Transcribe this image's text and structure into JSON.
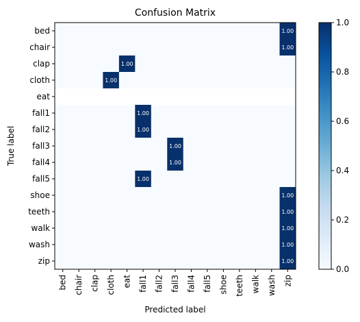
{
  "chart_data": {
    "type": "heatmap",
    "title": "Confusion Matrix",
    "xlabel": "Predicted label",
    "ylabel": "True label",
    "labels": [
      "bed",
      "chair",
      "clap",
      "cloth",
      "eat",
      "fall1",
      "fall2",
      "fall3",
      "fall4",
      "fall5",
      "shoe",
      "teeth",
      "walk",
      "wash",
      "zip"
    ],
    "matrix": [
      [
        0,
        0,
        0,
        0,
        0,
        0,
        0,
        0,
        0,
        0,
        0,
        0,
        0,
        0,
        1
      ],
      [
        0,
        0,
        0,
        0,
        0,
        0,
        0,
        0,
        0,
        0,
        0,
        0,
        0,
        0,
        1
      ],
      [
        0,
        0,
        0,
        0,
        1,
        0,
        0,
        0,
        0,
        0,
        0,
        0,
        0,
        0,
        0
      ],
      [
        0,
        0,
        0,
        1,
        0,
        0,
        0,
        0,
        0,
        0,
        0,
        0,
        0,
        0,
        0
      ],
      [
        null,
        null,
        null,
        null,
        null,
        null,
        null,
        null,
        null,
        null,
        null,
        null,
        null,
        null,
        null
      ],
      [
        0,
        0,
        0,
        0,
        0,
        1,
        0,
        0,
        0,
        0,
        0,
        0,
        0,
        0,
        0
      ],
      [
        0,
        0,
        0,
        0,
        0,
        1,
        0,
        0,
        0,
        0,
        0,
        0,
        0,
        0,
        0
      ],
      [
        0,
        0,
        0,
        0,
        0,
        0,
        0,
        1,
        0,
        0,
        0,
        0,
        0,
        0,
        0
      ],
      [
        0,
        0,
        0,
        0,
        0,
        0,
        0,
        1,
        0,
        0,
        0,
        0,
        0,
        0,
        0
      ],
      [
        0,
        0,
        0,
        0,
        0,
        1,
        0,
        0,
        0,
        0,
        0,
        0,
        0,
        0,
        0
      ],
      [
        0,
        0,
        0,
        0,
        0,
        0,
        0,
        0,
        0,
        0,
        0,
        0,
        0,
        0,
        1
      ],
      [
        0,
        0,
        0,
        0,
        0,
        0,
        0,
        0,
        0,
        0,
        0,
        0,
        0,
        0,
        1
      ],
      [
        0,
        0,
        0,
        0,
        0,
        0,
        0,
        0,
        0,
        0,
        0,
        0,
        0,
        0,
        1
      ],
      [
        0,
        0,
        0,
        0,
        0,
        0,
        0,
        0,
        0,
        0,
        0,
        0,
        0,
        0,
        1
      ],
      [
        0,
        0,
        0,
        0,
        0,
        0,
        0,
        0,
        0,
        0,
        0,
        0,
        0,
        0,
        1
      ]
    ],
    "cell_label_format": "1.00",
    "colormap": "Blues",
    "colorbar": {
      "min": 0.0,
      "max": 1.0,
      "ticks": [
        "0.0",
        "0.2",
        "0.4",
        "0.6",
        "0.8",
        "1.0"
      ]
    },
    "colors": {
      "low": "#f7fbff",
      "high": "#08306b",
      "missing": "#ffffff"
    }
  }
}
